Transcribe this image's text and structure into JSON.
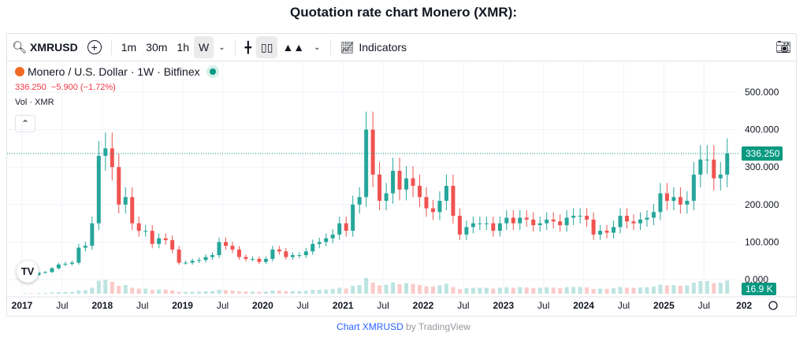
{
  "page_title": "Quotation rate chart Monero (XMR):",
  "toolbar": {
    "symbol": "XMRUSD",
    "intervals": [
      "1m",
      "30m",
      "1h",
      "W"
    ],
    "active_interval": "W",
    "indicators_label": "Indicators"
  },
  "legend": {
    "name": "Monero / U.S. Dollar · 1W · Bitfinex",
    "last": "336.250",
    "change": "−5.900 (−1.72%)",
    "volume_label": "Vol · XMR"
  },
  "footer": {
    "link": "Chart XMRUSD",
    "suffix": " by TradingView"
  },
  "colors": {
    "up": "#26a69a",
    "down": "#ef5350",
    "price_label": "#089981"
  },
  "chart_data": {
    "type": "candlestick",
    "title": "Monero / U.S. Dollar · 1W · Bitfinex",
    "ylim": [
      0,
      560
    ],
    "y_ticks": [
      "500.000",
      "400.000",
      "300.000",
      "200.000",
      "100.000",
      "0.000"
    ],
    "x_ticks": [
      "2017",
      "Jul",
      "2018",
      "Jul",
      "2019",
      "Jul",
      "2020",
      "Jul",
      "2021",
      "Jul",
      "2022",
      "Jul",
      "2023",
      "Jul",
      "2024",
      "Jul",
      "2025",
      "Jul",
      "202"
    ],
    "last_price_label": "336.250",
    "volume_label": "16.9 K",
    "start": "2017-01",
    "monthly_close": [
      13,
      12,
      18,
      20,
      30,
      40,
      42,
      45,
      85,
      90,
      150,
      330,
      350,
      300,
      200,
      220,
      150,
      130,
      130,
      95,
      110,
      105,
      80,
      45,
      45,
      50,
      52,
      60,
      65,
      100,
      90,
      80,
      60,
      55,
      55,
      47,
      55,
      80,
      75,
      60,
      65,
      65,
      75,
      95,
      100,
      110,
      120,
      150,
      130,
      200,
      220,
      400,
      280,
      210,
      230,
      290,
      240,
      270,
      250,
      220,
      190,
      180,
      210,
      250,
      170,
      120,
      140,
      150,
      150,
      150,
      130,
      150,
      165,
      150,
      165,
      160,
      145,
      150,
      160,
      155,
      145,
      165,
      170,
      170,
      160,
      120,
      130,
      125,
      140,
      170,
      155,
      150,
      160,
      165,
      180,
      230,
      210,
      220,
      200,
      210,
      280,
      320,
      320,
      270,
      280,
      336.25
    ]
  }
}
